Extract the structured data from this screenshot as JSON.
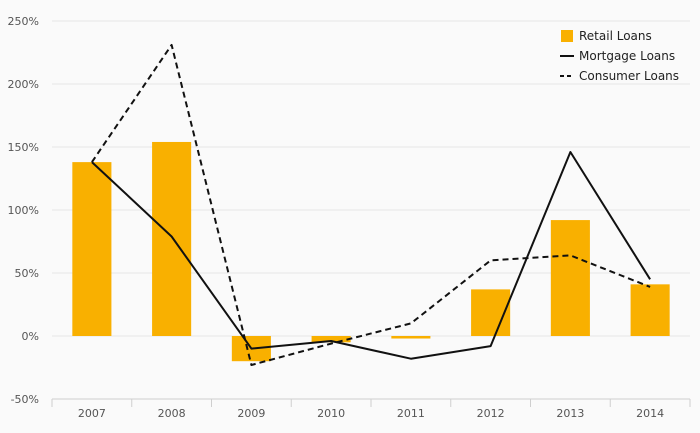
{
  "chart_data": {
    "type": "bar",
    "categories": [
      "2007",
      "2008",
      "2009",
      "2010",
      "2011",
      "2012",
      "2013",
      "2014"
    ],
    "series": [
      {
        "name": "Retail Loans",
        "kind": "bar",
        "color": "#f9b000",
        "values": [
          138,
          154,
          -20,
          -5,
          -2,
          37,
          92,
          41
        ]
      },
      {
        "name": "Mortgage Loans",
        "kind": "line",
        "style": "solid",
        "color": "#111111",
        "values": [
          138,
          79,
          -10,
          -4,
          -18,
          -8,
          146,
          45
        ]
      },
      {
        "name": "Consumer Loans",
        "kind": "line",
        "style": "dashed",
        "color": "#111111",
        "values": [
          138,
          231,
          -23,
          -6,
          10,
          60,
          64,
          39
        ]
      }
    ],
    "ylim": [
      -50,
      250
    ],
    "yticks": [
      -50,
      0,
      50,
      100,
      150,
      200,
      250
    ],
    "ytick_labels": [
      "-50%",
      "0%",
      "50%",
      "100%",
      "150%",
      "200%",
      "250%"
    ],
    "grid": true,
    "legend_position": "top-right",
    "title": "",
    "xlabel": "",
    "ylabel": ""
  }
}
